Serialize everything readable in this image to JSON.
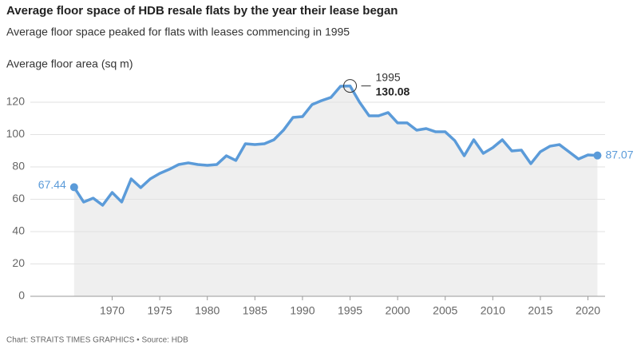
{
  "chart_data": {
    "type": "line",
    "title": "Average floor space of HDB resale flats by the year their lease began",
    "subtitle": "Average floor space peaked for flats with leases commencing in 1995",
    "y_label": "Average floor area (sq m)",
    "source": "Chart: STRAITS TIMES GRAPHICS • Source: HDB",
    "x": [
      1966,
      1967,
      1968,
      1969,
      1970,
      1971,
      1972,
      1973,
      1974,
      1975,
      1976,
      1977,
      1978,
      1979,
      1980,
      1981,
      1982,
      1983,
      1984,
      1985,
      1986,
      1987,
      1988,
      1989,
      1990,
      1991,
      1992,
      1993,
      1994,
      1995,
      1996,
      1997,
      1998,
      1999,
      2000,
      2001,
      2002,
      2003,
      2004,
      2005,
      2006,
      2007,
      2008,
      2009,
      2010,
      2011,
      2012,
      2013,
      2014,
      2015,
      2016,
      2017,
      2018,
      2019,
      2020,
      2021
    ],
    "series": [
      {
        "name": "Average floor area",
        "color": "#5b9bd9",
        "values": [
          67.44,
          58.3,
          60.7,
          56.3,
          64.2,
          58.3,
          72.6,
          67.2,
          72.6,
          76,
          78.5,
          81.5,
          82.5,
          81.5,
          81,
          81.5,
          86.9,
          84,
          94.3,
          93.8,
          94.3,
          96.8,
          102.7,
          110.6,
          111.1,
          118.5,
          121,
          123,
          129.9,
          130.08,
          120,
          111.6,
          111.6,
          113.6,
          107.2,
          107.2,
          102.7,
          103.7,
          101.7,
          101.7,
          96.3,
          86.9,
          96.8,
          88.4,
          91.9,
          96.8,
          89.9,
          90.4,
          82,
          89.4,
          92.8,
          93.8,
          89.4,
          84.9,
          87.4,
          87.07
        ]
      }
    ],
    "xlim": [
      1961.4,
      2021.8
    ],
    "ylim": [
      0,
      120
    ],
    "xticks": [
      1970,
      1975,
      1980,
      1985,
      1990,
      1995,
      2000,
      2005,
      2010,
      2015,
      2020
    ],
    "yticks": [
      0,
      20,
      40,
      60,
      80,
      100,
      120
    ],
    "grid": true,
    "area_color": "#efefef"
  }
}
